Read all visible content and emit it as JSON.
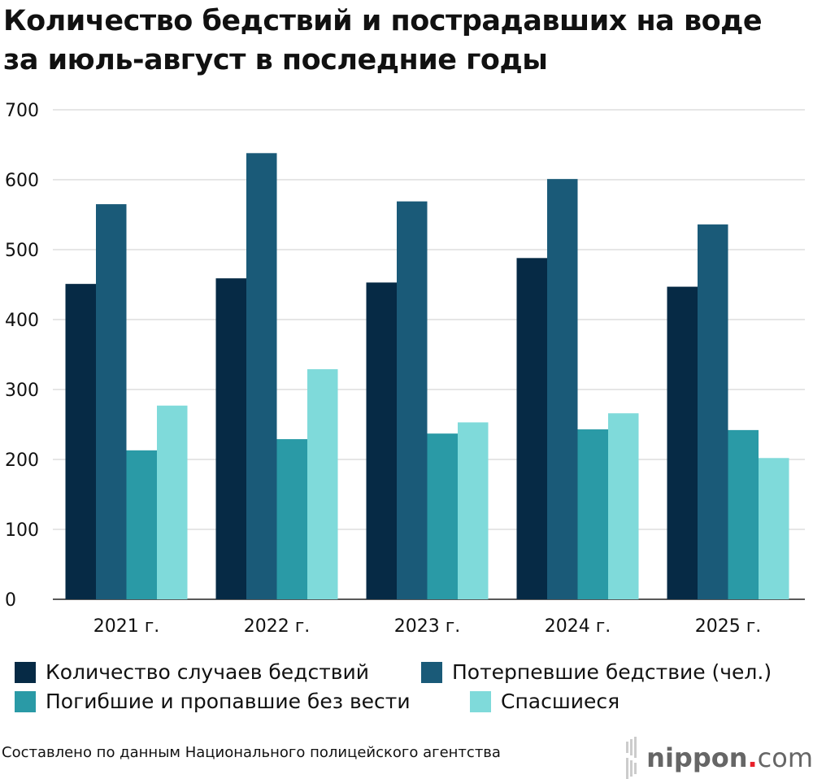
{
  "title_line1": "Количество бедствий и пострадавших на воде",
  "title_line2": "за июль-август в последние годы",
  "source": "Составлено по данным Национального полицейского агентства",
  "logo": {
    "text": "nippon",
    "dot": ".",
    "suffix": "com"
  },
  "chart_data": {
    "type": "bar",
    "title": "Количество бедствий и пострадавших на воде за июль-август в последние годы",
    "categories": [
      "2021 г.",
      "2022 г.",
      "2023 г.",
      "2024 г.",
      "2025 г."
    ],
    "yticks": [
      "0",
      "100",
      "200",
      "300",
      "400",
      "500",
      "600",
      "700"
    ],
    "ylim": [
      0,
      700
    ],
    "grid": true,
    "legend_position": "bottom",
    "series": [
      {
        "name": "Количество случаев бедствий",
        "color": "#062a45",
        "values": [
          451,
          459,
          453,
          488,
          447
        ]
      },
      {
        "name": "Потерпевшие бедствие (чел.)",
        "color": "#1a5a78",
        "values": [
          565,
          638,
          569,
          601,
          536
        ]
      },
      {
        "name": "Погибшие и пропавшие без вести",
        "color": "#2a9aa6",
        "values": [
          213,
          229,
          237,
          243,
          242
        ]
      },
      {
        "name": "Спасшиеся",
        "color": "#7fdada",
        "values": [
          277,
          329,
          253,
          266,
          202
        ]
      }
    ]
  }
}
